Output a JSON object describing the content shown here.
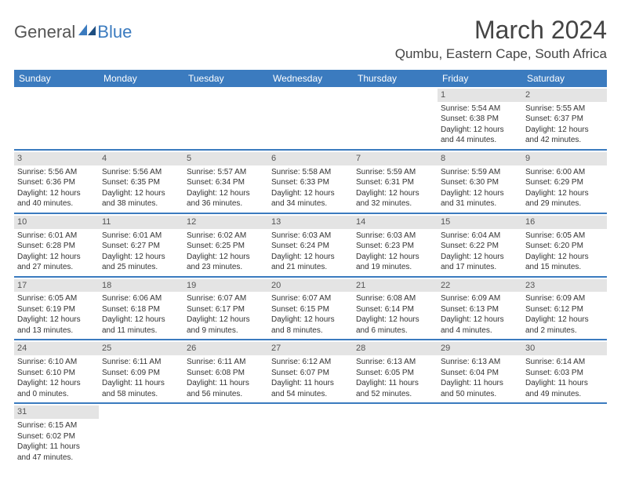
{
  "brand": {
    "general": "General",
    "blue": "Blue"
  },
  "title": "March 2024",
  "location": "Qumbu, Eastern Cape, South Africa",
  "colors": {
    "header_bg": "#3b7bbf",
    "daynum_bg": "#e4e4e4",
    "border": "#3b7bbf",
    "text": "#333333",
    "background": "#ffffff"
  },
  "typography": {
    "title_fontsize": 32,
    "location_fontsize": 17,
    "dayname_fontsize": 12,
    "cell_fontsize": 10
  },
  "daynames": [
    "Sunday",
    "Monday",
    "Tuesday",
    "Wednesday",
    "Thursday",
    "Friday",
    "Saturday"
  ],
  "weeks": [
    [
      null,
      null,
      null,
      null,
      null,
      {
        "n": "1",
        "sr": "Sunrise: 5:54 AM",
        "ss": "Sunset: 6:38 PM",
        "d1": "Daylight: 12 hours",
        "d2": "and 44 minutes."
      },
      {
        "n": "2",
        "sr": "Sunrise: 5:55 AM",
        "ss": "Sunset: 6:37 PM",
        "d1": "Daylight: 12 hours",
        "d2": "and 42 minutes."
      }
    ],
    [
      {
        "n": "3",
        "sr": "Sunrise: 5:56 AM",
        "ss": "Sunset: 6:36 PM",
        "d1": "Daylight: 12 hours",
        "d2": "and 40 minutes."
      },
      {
        "n": "4",
        "sr": "Sunrise: 5:56 AM",
        "ss": "Sunset: 6:35 PM",
        "d1": "Daylight: 12 hours",
        "d2": "and 38 minutes."
      },
      {
        "n": "5",
        "sr": "Sunrise: 5:57 AM",
        "ss": "Sunset: 6:34 PM",
        "d1": "Daylight: 12 hours",
        "d2": "and 36 minutes."
      },
      {
        "n": "6",
        "sr": "Sunrise: 5:58 AM",
        "ss": "Sunset: 6:33 PM",
        "d1": "Daylight: 12 hours",
        "d2": "and 34 minutes."
      },
      {
        "n": "7",
        "sr": "Sunrise: 5:59 AM",
        "ss": "Sunset: 6:31 PM",
        "d1": "Daylight: 12 hours",
        "d2": "and 32 minutes."
      },
      {
        "n": "8",
        "sr": "Sunrise: 5:59 AM",
        "ss": "Sunset: 6:30 PM",
        "d1": "Daylight: 12 hours",
        "d2": "and 31 minutes."
      },
      {
        "n": "9",
        "sr": "Sunrise: 6:00 AM",
        "ss": "Sunset: 6:29 PM",
        "d1": "Daylight: 12 hours",
        "d2": "and 29 minutes."
      }
    ],
    [
      {
        "n": "10",
        "sr": "Sunrise: 6:01 AM",
        "ss": "Sunset: 6:28 PM",
        "d1": "Daylight: 12 hours",
        "d2": "and 27 minutes."
      },
      {
        "n": "11",
        "sr": "Sunrise: 6:01 AM",
        "ss": "Sunset: 6:27 PM",
        "d1": "Daylight: 12 hours",
        "d2": "and 25 minutes."
      },
      {
        "n": "12",
        "sr": "Sunrise: 6:02 AM",
        "ss": "Sunset: 6:25 PM",
        "d1": "Daylight: 12 hours",
        "d2": "and 23 minutes."
      },
      {
        "n": "13",
        "sr": "Sunrise: 6:03 AM",
        "ss": "Sunset: 6:24 PM",
        "d1": "Daylight: 12 hours",
        "d2": "and 21 minutes."
      },
      {
        "n": "14",
        "sr": "Sunrise: 6:03 AM",
        "ss": "Sunset: 6:23 PM",
        "d1": "Daylight: 12 hours",
        "d2": "and 19 minutes."
      },
      {
        "n": "15",
        "sr": "Sunrise: 6:04 AM",
        "ss": "Sunset: 6:22 PM",
        "d1": "Daylight: 12 hours",
        "d2": "and 17 minutes."
      },
      {
        "n": "16",
        "sr": "Sunrise: 6:05 AM",
        "ss": "Sunset: 6:20 PM",
        "d1": "Daylight: 12 hours",
        "d2": "and 15 minutes."
      }
    ],
    [
      {
        "n": "17",
        "sr": "Sunrise: 6:05 AM",
        "ss": "Sunset: 6:19 PM",
        "d1": "Daylight: 12 hours",
        "d2": "and 13 minutes."
      },
      {
        "n": "18",
        "sr": "Sunrise: 6:06 AM",
        "ss": "Sunset: 6:18 PM",
        "d1": "Daylight: 12 hours",
        "d2": "and 11 minutes."
      },
      {
        "n": "19",
        "sr": "Sunrise: 6:07 AM",
        "ss": "Sunset: 6:17 PM",
        "d1": "Daylight: 12 hours",
        "d2": "and 9 minutes."
      },
      {
        "n": "20",
        "sr": "Sunrise: 6:07 AM",
        "ss": "Sunset: 6:15 PM",
        "d1": "Daylight: 12 hours",
        "d2": "and 8 minutes."
      },
      {
        "n": "21",
        "sr": "Sunrise: 6:08 AM",
        "ss": "Sunset: 6:14 PM",
        "d1": "Daylight: 12 hours",
        "d2": "and 6 minutes."
      },
      {
        "n": "22",
        "sr": "Sunrise: 6:09 AM",
        "ss": "Sunset: 6:13 PM",
        "d1": "Daylight: 12 hours",
        "d2": "and 4 minutes."
      },
      {
        "n": "23",
        "sr": "Sunrise: 6:09 AM",
        "ss": "Sunset: 6:12 PM",
        "d1": "Daylight: 12 hours",
        "d2": "and 2 minutes."
      }
    ],
    [
      {
        "n": "24",
        "sr": "Sunrise: 6:10 AM",
        "ss": "Sunset: 6:10 PM",
        "d1": "Daylight: 12 hours",
        "d2": "and 0 minutes."
      },
      {
        "n": "25",
        "sr": "Sunrise: 6:11 AM",
        "ss": "Sunset: 6:09 PM",
        "d1": "Daylight: 11 hours",
        "d2": "and 58 minutes."
      },
      {
        "n": "26",
        "sr": "Sunrise: 6:11 AM",
        "ss": "Sunset: 6:08 PM",
        "d1": "Daylight: 11 hours",
        "d2": "and 56 minutes."
      },
      {
        "n": "27",
        "sr": "Sunrise: 6:12 AM",
        "ss": "Sunset: 6:07 PM",
        "d1": "Daylight: 11 hours",
        "d2": "and 54 minutes."
      },
      {
        "n": "28",
        "sr": "Sunrise: 6:13 AM",
        "ss": "Sunset: 6:05 PM",
        "d1": "Daylight: 11 hours",
        "d2": "and 52 minutes."
      },
      {
        "n": "29",
        "sr": "Sunrise: 6:13 AM",
        "ss": "Sunset: 6:04 PM",
        "d1": "Daylight: 11 hours",
        "d2": "and 50 minutes."
      },
      {
        "n": "30",
        "sr": "Sunrise: 6:14 AM",
        "ss": "Sunset: 6:03 PM",
        "d1": "Daylight: 11 hours",
        "d2": "and 49 minutes."
      }
    ],
    [
      {
        "n": "31",
        "sr": "Sunrise: 6:15 AM",
        "ss": "Sunset: 6:02 PM",
        "d1": "Daylight: 11 hours",
        "d2": "and 47 minutes."
      },
      null,
      null,
      null,
      null,
      null,
      null
    ]
  ]
}
